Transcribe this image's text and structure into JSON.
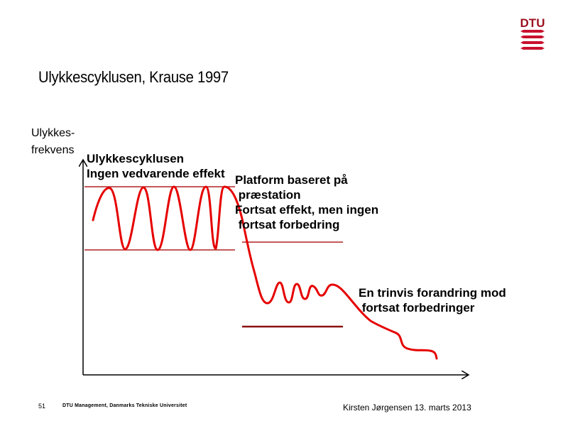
{
  "slide": {
    "title": "Ulykkescyklusen, Krause 1997",
    "logo_text": "DTU",
    "brand_color": "#c8102e",
    "curve_color": "#e60000"
  },
  "diagram": {
    "y_axis_label": [
      "Ulykkes-",
      "frekvens"
    ],
    "phase1": [
      "Ulykkescyklusen",
      "Ingen vedvarende effekt"
    ],
    "phase2": [
      "Platform baseret på",
      " præstation",
      "Fortsat effekt, men ingen",
      " fortsat forbedring"
    ],
    "phase3": [
      "En trinvis forandring mod",
      " fortsat forbedringer"
    ]
  },
  "footer": {
    "page_number": "51",
    "institution": "DTU Management, Danmarks Tekniske Universitet",
    "author_date": "Kirsten Jørgensen 13. marts 2013"
  }
}
